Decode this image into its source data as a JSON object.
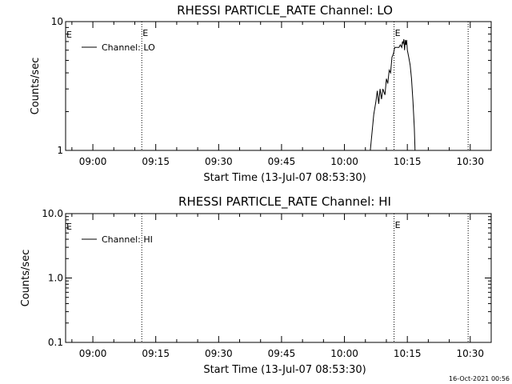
{
  "footer_timestamp": "16-Oct-2021 00:56",
  "chart_data": [
    {
      "type": "line",
      "title": "RHESSI PARTICLE_RATE Channel: LO",
      "xlabel": "Start Time (13-Jul-07 08:53:30)",
      "ylabel": "Counts/sec",
      "yscale": "log",
      "ylim": [
        1,
        10
      ],
      "ytick_values": [
        1,
        10
      ],
      "ytick_labels": [
        "1",
        "10"
      ],
      "xlim": [
        "08:53:30",
        "10:35:00"
      ],
      "xtick_labels": [
        "09:00",
        "09:15",
        "09:30",
        "09:45",
        "10:00",
        "10:15",
        "10:30"
      ],
      "xtick_minutes": [
        540,
        555,
        570,
        585,
        600,
        615,
        630
      ],
      "event_lines": [
        {
          "time": "09:11:40",
          "label": "E"
        },
        {
          "time": "10:11:50",
          "label": "E"
        },
        {
          "time": "10:29:30",
          "label": ""
        }
      ],
      "event_label_at_start": "E",
      "legend": "Channel: LO",
      "legend_position": "top-left",
      "series": [
        {
          "name": "Channel: LO",
          "points": [
            [
              "10:06:10",
              1.0
            ],
            [
              "10:07:00",
              1.9
            ],
            [
              "10:07:30",
              2.4
            ],
            [
              "10:07:50",
              2.9
            ],
            [
              "10:08:10",
              2.3
            ],
            [
              "10:08:30",
              3.0
            ],
            [
              "10:08:50",
              2.5
            ],
            [
              "10:09:10",
              3.0
            ],
            [
              "10:09:40",
              2.7
            ],
            [
              "10:10:00",
              3.6
            ],
            [
              "10:10:20",
              3.3
            ],
            [
              "10:10:40",
              4.2
            ],
            [
              "10:11:00",
              4.0
            ],
            [
              "10:11:20",
              5.3
            ],
            [
              "10:11:40",
              5.6
            ],
            [
              "10:12:00",
              6.3
            ],
            [
              "10:12:40",
              6.3
            ],
            [
              "10:13:00",
              6.3
            ],
            [
              "10:13:20",
              6.6
            ],
            [
              "10:13:40",
              6.3
            ],
            [
              "10:13:50",
              7.0
            ],
            [
              "10:14:00",
              6.8
            ],
            [
              "10:14:10",
              7.3
            ],
            [
              "10:14:20",
              6.0
            ],
            [
              "10:14:30",
              7.2
            ],
            [
              "10:14:40",
              6.6
            ],
            [
              "10:14:50",
              7.2
            ],
            [
              "10:15:00",
              6.0
            ],
            [
              "10:15:20",
              5.3
            ],
            [
              "10:15:40",
              4.6
            ],
            [
              "10:16:00",
              3.6
            ],
            [
              "10:16:20",
              2.4
            ],
            [
              "10:16:40",
              1.5
            ],
            [
              "10:16:50",
              1.0
            ]
          ]
        }
      ]
    },
    {
      "type": "line",
      "title": "RHESSI PARTICLE_RATE Channel: HI",
      "xlabel": "Start Time (13-Jul-07 08:53:30)",
      "ylabel": "Counts/sec",
      "yscale": "log",
      "ylim": [
        0.1,
        10
      ],
      "ytick_values": [
        0.1,
        1,
        10
      ],
      "ytick_labels": [
        "0.1",
        "1.0",
        "10.0"
      ],
      "xlim": [
        "08:53:30",
        "10:35:00"
      ],
      "xtick_labels": [
        "09:00",
        "09:15",
        "09:30",
        "09:45",
        "10:00",
        "10:15",
        "10:30"
      ],
      "xtick_minutes": [
        540,
        555,
        570,
        585,
        600,
        615,
        630
      ],
      "event_lines": [
        {
          "time": "09:11:40",
          "label": ""
        },
        {
          "time": "10:11:50",
          "label": "E"
        },
        {
          "time": "10:29:30",
          "label": ""
        }
      ],
      "event_label_at_start": "E",
      "legend": "Channel: HI",
      "legend_position": "top-left",
      "series": [
        {
          "name": "Channel: HI",
          "points": []
        }
      ]
    }
  ]
}
